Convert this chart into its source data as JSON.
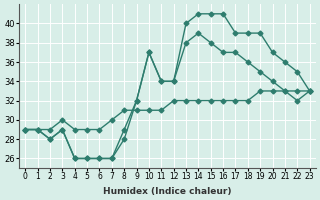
{
  "xlabel": "Humidex (Indice chaleur)",
  "bg_color": "#d8eee8",
  "line_color": "#2e7d6e",
  "series1": [
    29,
    29,
    28,
    29,
    26,
    26,
    26,
    26,
    28,
    32,
    37,
    34,
    34,
    40,
    41,
    41,
    41,
    39,
    39,
    39,
    37,
    36,
    35,
    33
  ],
  "series2": [
    29,
    29,
    29,
    30,
    29,
    29,
    29,
    30,
    31,
    31,
    31,
    31,
    32,
    32,
    32,
    32,
    32,
    32,
    32,
    33,
    33,
    33,
    33,
    33
  ],
  "series3": [
    29,
    29,
    28,
    29,
    26,
    26,
    26,
    26,
    29,
    32,
    37,
    34,
    34,
    38,
    39,
    38,
    37,
    37,
    36,
    35,
    34,
    33,
    32,
    33
  ],
  "xlim": [
    -0.5,
    23.5
  ],
  "ylim": [
    25,
    42
  ],
  "yticks": [
    26,
    28,
    30,
    32,
    34,
    36,
    38,
    40
  ],
  "xtick_labels": [
    "0",
    "1",
    "2",
    "3",
    "4",
    "5",
    "6",
    "7",
    "8",
    "9",
    "10",
    "11",
    "12",
    "13",
    "14",
    "15",
    "16",
    "17",
    "18",
    "19",
    "20",
    "21",
    "22",
    "23"
  ]
}
